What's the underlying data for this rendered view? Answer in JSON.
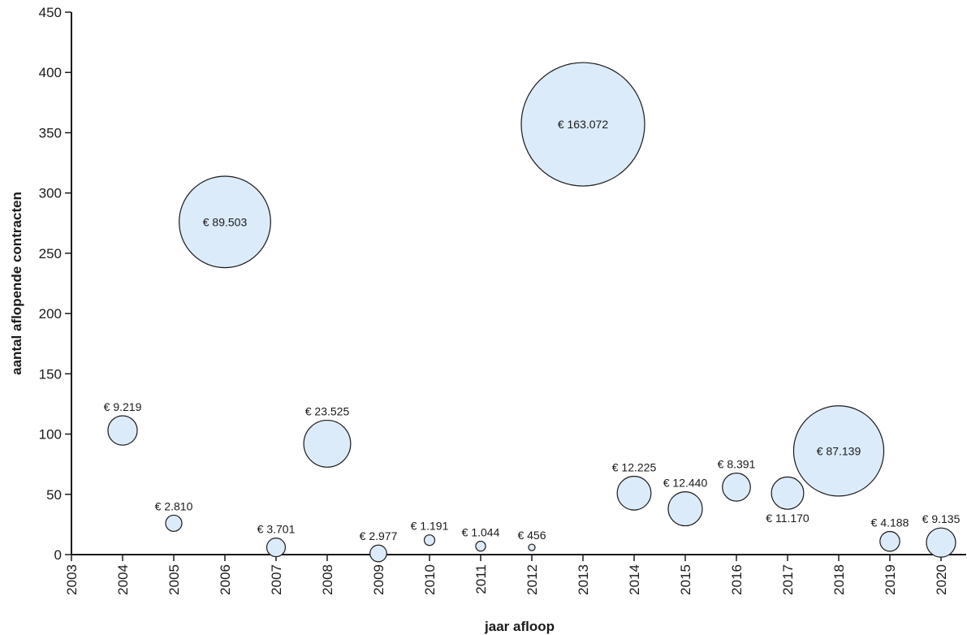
{
  "chart_data": {
    "type": "bubble",
    "xlabel": "jaar afloop",
    "ylabel": "aantal aflopende contracten",
    "xlim": [
      2003,
      2020
    ],
    "ylim": [
      0,
      450
    ],
    "x_ticks": [
      "2003",
      "2004",
      "2005",
      "2006",
      "2007",
      "2008",
      "2009",
      "2010",
      "2011",
      "2012",
      "2013",
      "2014",
      "2015",
      "2016",
      "2017",
      "2018",
      "2019",
      "2020"
    ],
    "y_ticks": [
      "0",
      "50",
      "100",
      "150",
      "200",
      "250",
      "300",
      "350",
      "400",
      "450"
    ],
    "grid": false,
    "colors": {
      "bubble_fill": "#dcebf9",
      "bubble_stroke": "#1a1a1a",
      "axis": "#1a1a1a"
    },
    "points": [
      {
        "x": 2004,
        "y": 103,
        "size": 9219,
        "label": "€ 9.219",
        "label_position": "above"
      },
      {
        "x": 2005,
        "y": 26,
        "size": 2810,
        "label": "€ 2.810",
        "label_position": "above"
      },
      {
        "x": 2006,
        "y": 276,
        "size": 89503,
        "label": "€ 89.503",
        "label_position": "inside"
      },
      {
        "x": 2007,
        "y": 6,
        "size": 3701,
        "label": "€ 3.701",
        "label_position": "above"
      },
      {
        "x": 2008,
        "y": 92,
        "size": 23525,
        "label": "€ 23.525",
        "label_position": "above"
      },
      {
        "x": 2009,
        "y": 1,
        "size": 2977,
        "label": "€ 2.977",
        "label_position": "above"
      },
      {
        "x": 2010,
        "y": 12,
        "size": 1191,
        "label": "€ 1.191",
        "label_position": "above"
      },
      {
        "x": 2011,
        "y": 7,
        "size": 1044,
        "label": "€ 1.044",
        "label_position": "above"
      },
      {
        "x": 2012,
        "y": 6,
        "size": 456,
        "label": "€ 456",
        "label_position": "above"
      },
      {
        "x": 2013,
        "y": 357,
        "size": 163072,
        "label": "€ 163.072",
        "label_position": "inside"
      },
      {
        "x": 2014,
        "y": 51,
        "size": 12225,
        "label": "€ 12.225",
        "label_position": "above"
      },
      {
        "x": 2015,
        "y": 38,
        "size": 12440,
        "label": "€ 12.440",
        "label_position": "above"
      },
      {
        "x": 2016,
        "y": 56,
        "size": 8391,
        "label": "€ 8.391",
        "label_position": "above"
      },
      {
        "x": 2017,
        "y": 51,
        "size": 11170,
        "label": "€ 11.170",
        "label_position": "below"
      },
      {
        "x": 2018,
        "y": 86,
        "size": 87139,
        "label": "€ 87.139",
        "label_position": "inside"
      },
      {
        "x": 2019,
        "y": 11,
        "size": 4188,
        "label": "€ 4.188",
        "label_position": "above"
      },
      {
        "x": 2020,
        "y": 10,
        "size": 9135,
        "label": "€ 9.135",
        "label_position": "above"
      }
    ]
  }
}
